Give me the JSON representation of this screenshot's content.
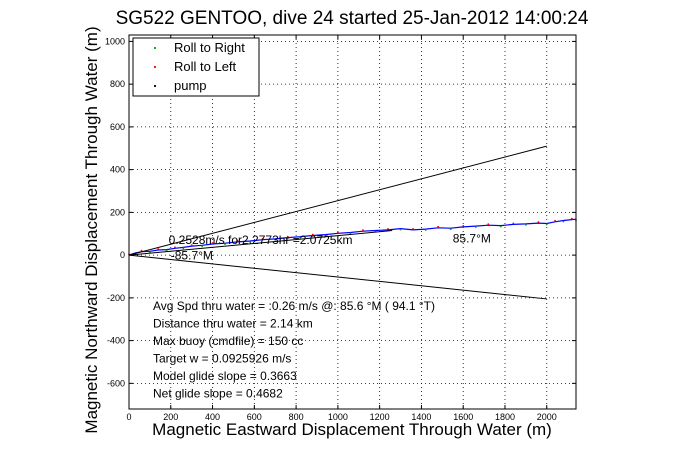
{
  "chart_data": {
    "type": "line",
    "title": "SG522 GENTOO, dive 24 started 25-Jan-2012 14:00:24",
    "xlabel": "Magnetic Eastward Displacement Through Water (m)",
    "ylabel": "Magnetic Northward Displacement Through Water (m)",
    "xlim": [
      0,
      2140
    ],
    "ylim": [
      -720,
      1030
    ],
    "x_ticks": [
      0,
      200,
      400,
      600,
      800,
      1000,
      1200,
      1400,
      1600,
      1800,
      2000
    ],
    "y_ticks": [
      1000,
      800,
      600,
      400,
      200,
      0,
      -200,
      -400,
      -600
    ],
    "grid": true,
    "legend_position": "top-left",
    "legend": [
      {
        "label": "Roll to Right",
        "color": "#00aa00"
      },
      {
        "label": "Roll to Left",
        "color": "#ff0000"
      },
      {
        "label": "pump",
        "color": "#000000"
      }
    ],
    "series": [
      {
        "name": "track",
        "color": "#0000ff",
        "x": [
          0,
          30,
          60,
          100,
          140,
          180,
          220,
          260,
          300,
          350,
          400,
          460,
          520,
          580,
          640,
          700,
          760,
          820,
          880,
          940,
          1000,
          1060,
          1120,
          1180,
          1240,
          1300,
          1360,
          1420,
          1480,
          1540,
          1600,
          1660,
          1720,
          1780,
          1840,
          1900,
          1960,
          2000,
          2040,
          2080,
          2120,
          2140
        ],
        "y": [
          0,
          10,
          16,
          18,
          24,
          26,
          32,
          36,
          42,
          46,
          52,
          56,
          62,
          66,
          72,
          76,
          82,
          86,
          92,
          96,
          102,
          106,
          112,
          115,
          118,
          124,
          118,
          122,
          128,
          126,
          132,
          136,
          140,
          138,
          144,
          146,
          150,
          148,
          156,
          162,
          166,
          168
        ]
      },
      {
        "name": "bounds",
        "color": "#000000",
        "segments": [
          {
            "x": [
              0,
              2000
            ],
            "y": [
              0,
              510
            ]
          },
          {
            "x": [
              0,
              2000
            ],
            "y": [
              0,
              -205
            ]
          },
          {
            "x": [
              0,
              1260
            ],
            "y": [
              0,
              115
            ]
          }
        ]
      }
    ],
    "annotations": [
      {
        "text": "0.2528m/s for2.2773hr =2.0725km",
        "x": 190,
        "y": 52
      },
      {
        "text": "85.7°M",
        "x": 1550,
        "y": 60
      },
      {
        "text": "-85.7°M",
        "x": 200,
        "y": -20
      }
    ],
    "stats": [
      "Avg Spd thru water = :0.26 m/s @: 85.6   °M ( 94.1 °T)",
      "Distance thru water = 2.14 km",
      "Max buoy (cmdfile) = 150 cc",
      "Target w = 0.0925926 m/s",
      "Model glide slope = 0.3663",
      "Net glide slope = 0.4682"
    ]
  }
}
